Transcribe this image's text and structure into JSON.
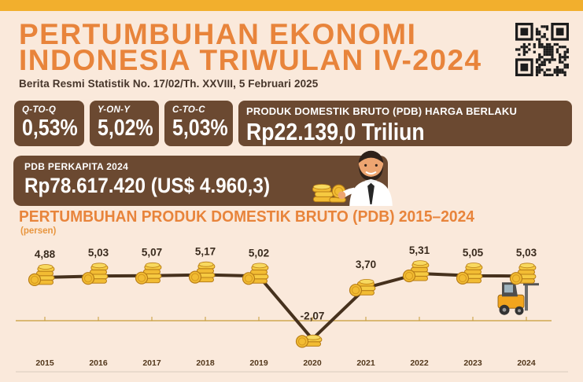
{
  "header": {
    "title_line1": "PERTUMBUHAN EKONOMI",
    "title_line2": "INDONESIA TRIWULAN IV-2024",
    "subtitle": "Berita Resmi Statistik No. 17/02/Th. XXVIII, 5 Februari 2025"
  },
  "stats": [
    {
      "label": "Q-TO-Q",
      "value": "0,53%"
    },
    {
      "label": "Y-ON-Y",
      "value": "5,02%"
    },
    {
      "label": "C-TO-C",
      "value": "5,03%"
    }
  ],
  "gdp_box": {
    "label": "PRODUK DOMESTIK BRUTO (PDB) HARGA BERLAKU",
    "value": "Rp22.139,0 Triliun"
  },
  "per_capita_box": {
    "label": "PDB PERKAPITA 2024",
    "value": "Rp78.617.420 (US$ 4.960,3)"
  },
  "chart_data": {
    "type": "line",
    "title": "PERTUMBUHAN PRODUK DOMESTIK BRUTO (PDB) 2015–2024",
    "unit_label": "(persen)",
    "categories": [
      "2015",
      "2016",
      "2017",
      "2018",
      "2019",
      "2020",
      "2021",
      "2022",
      "2023",
      "2024"
    ],
    "values": [
      4.88,
      5.03,
      5.07,
      5.17,
      5.02,
      -2.07,
      3.7,
      5.31,
      5.05,
      5.03
    ],
    "value_labels": [
      "4,88",
      "5,03",
      "5,07",
      "5,17",
      "5,02",
      "-2,07",
      "3,70",
      "5,31",
      "5,05",
      "5,03"
    ],
    "baseline": 0,
    "ylim": [
      -3,
      6
    ],
    "grid": false,
    "legend": "none",
    "marker": "coin-stack-icon"
  },
  "decorations": {
    "qr": "qr-code",
    "chart_marker": "coin-stack-icon",
    "chart_extra": "forklift-icon",
    "per_capita_icon": "businessman-with-coins-icon"
  },
  "colors": {
    "top_bar": "#F2AF2D",
    "background": "#FAE9DB",
    "accent_orange": "#E8843B",
    "panel_brown": "#6B4931",
    "text_dark": "#46352A",
    "chart_line": "#46311D",
    "axis_gold": "#C69A35",
    "coin_gold": "#F2BC33",
    "coin_light": "#F6CA41",
    "coin_top": "#F8D95F",
    "coin_outline": "#B97E17",
    "value_label_text": "#3A2B1E",
    "year_text": "#53381C",
    "bottom_rule": "#DFD2C2",
    "qr_dark": "#1C1C1C"
  }
}
